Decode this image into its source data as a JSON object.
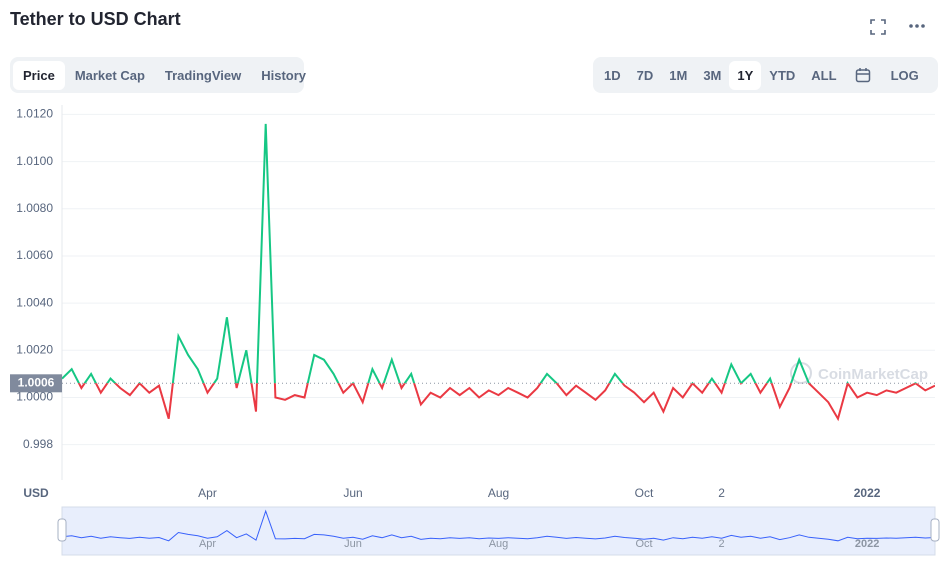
{
  "header": {
    "title": "Tether to USD Chart"
  },
  "tabs": [
    "Price",
    "Market Cap",
    "TradingView",
    "History"
  ],
  "ranges": [
    "1D",
    "7D",
    "1M",
    "3M",
    "1Y",
    "YTD",
    "ALL"
  ],
  "log": "LOG",
  "chart_data": {
    "type": "line",
    "y_label": "USD",
    "watermark": "CoinMarketCap",
    "categories": [
      null,
      null,
      null,
      null,
      null,
      null,
      null,
      null,
      null,
      null,
      null,
      null,
      null,
      null,
      null,
      "Apr",
      null,
      null,
      null,
      null,
      null,
      null,
      null,
      null,
      null,
      null,
      null,
      null,
      null,
      null,
      "Jun",
      null,
      null,
      null,
      null,
      null,
      null,
      null,
      null,
      null,
      null,
      null,
      null,
      null,
      null,
      "Aug",
      null,
      null,
      null,
      null,
      null,
      null,
      null,
      null,
      null,
      null,
      null,
      null,
      null,
      null,
      "Oct",
      null,
      null,
      null,
      null,
      null,
      null,
      null,
      "2",
      null,
      null,
      null,
      null,
      null,
      null,
      null,
      null,
      null,
      null,
      null,
      null,
      null,
      null,
      "2022",
      null,
      null,
      null,
      null,
      null,
      null,
      null
    ],
    "values": [
      1.0008,
      1.0012,
      1.0004,
      1.001,
      1.0002,
      1.0008,
      1.0004,
      1.0001,
      1.0006,
      1.0002,
      1.0005,
      0.9991,
      1.0026,
      1.0018,
      1.0012,
      1.0002,
      1.0008,
      1.0034,
      1.0004,
      1.002,
      0.9994,
      1.0116,
      1.0,
      0.9999,
      1.0001,
      1.0,
      1.0018,
      1.0016,
      1.001,
      1.0002,
      1.0006,
      0.9998,
      1.0012,
      1.0004,
      1.0016,
      1.0004,
      1.001,
      0.9997,
      1.0002,
      1.0,
      1.0004,
      1.0001,
      1.0004,
      1.0,
      1.0003,
      1.0001,
      1.0004,
      1.0002,
      1.0,
      1.0004,
      1.001,
      1.0006,
      1.0001,
      1.0005,
      1.0002,
      0.9999,
      1.0003,
      1.001,
      1.0005,
      1.0002,
      0.9998,
      1.0002,
      0.9994,
      1.0004,
      1.0,
      1.0006,
      1.0002,
      1.0008,
      1.0002,
      1.0014,
      1.0006,
      1.001,
      1.0002,
      1.0008,
      0.9996,
      1.0004,
      1.0016,
      1.0006,
      1.0002,
      0.9998,
      0.9991,
      1.0006,
      1.0,
      1.0002,
      1.0001,
      1.0003,
      1.0002,
      1.0004,
      1.0006,
      1.0003,
      1.0005
    ],
    "baseline": 1.0006,
    "color_above": "#16c784",
    "color_below": "#ea3943",
    "ylim": [
      0.9965,
      1.0124
    ],
    "yticks": [
      0.998,
      {
        "value": 1.0,
        "label": "1.0000"
      },
      {
        "value": 1.002,
        "label": "1.0020"
      },
      {
        "value": 1.004,
        "label": "1.0040"
      },
      {
        "value": 1.006,
        "label": "1.0060"
      },
      {
        "value": 1.008,
        "label": "1.0080"
      },
      {
        "value": 1.01,
        "label": "1.0100"
      },
      {
        "value": 1.012,
        "label": "1.0120"
      }
    ],
    "grid": true
  }
}
